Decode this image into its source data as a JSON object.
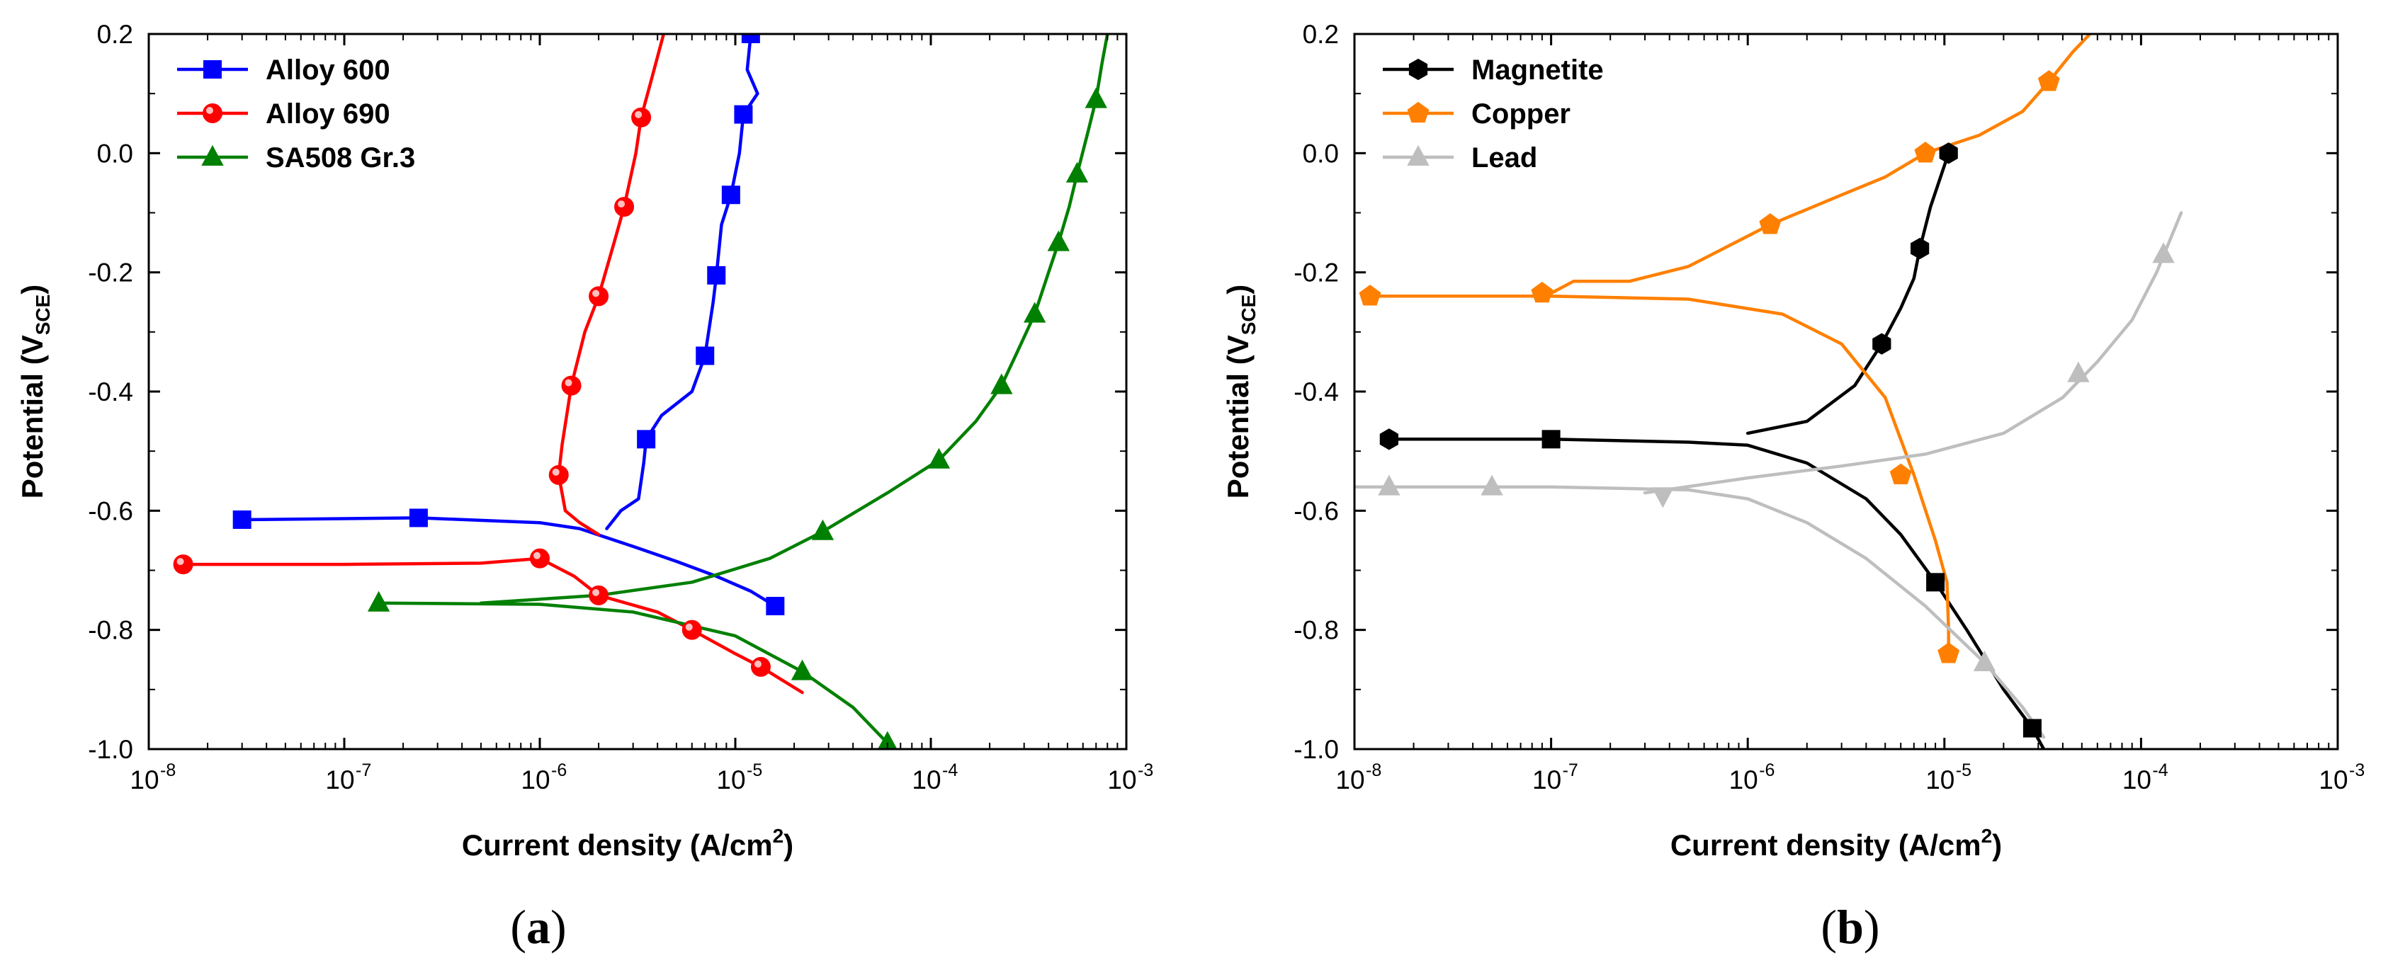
{
  "chart_data": [
    {
      "type": "line",
      "panel_label": "a",
      "xlabel": "Current density (A/cm",
      "xlabel_sup": "2",
      "xlabel_end": ")",
      "ylabel": "Potential (V",
      "ylabel_sub": "SCE",
      "ylabel_end": ")",
      "xscale": "log",
      "xlim": [
        1e-08,
        0.001
      ],
      "ylim": [
        -1.0,
        0.2
      ],
      "x_ticks": [
        -8,
        -7,
        -6,
        -5,
        -4,
        -3
      ],
      "y_ticks": [
        "0.2",
        "0.0",
        "-0.2",
        "-0.4",
        "-0.6",
        "-0.8",
        "-1.0"
      ],
      "legend_position": "top-left",
      "series": [
        {
          "name": "Alloy 600",
          "color": "#0000ff",
          "marker": "square",
          "cathodic": [
            [
              3e-08,
              -0.615
            ],
            [
              2.4e-07,
              -0.612
            ],
            [
              1e-06,
              -0.62
            ],
            [
              1.6e-06,
              -0.63
            ],
            [
              3e-06,
              -0.66
            ],
            [
              5e-06,
              -0.685
            ],
            [
              8e-06,
              -0.71
            ],
            [
              1.2e-05,
              -0.735
            ],
            [
              1.6e-05,
              -0.76
            ]
          ],
          "anodic": [
            [
              2.2e-06,
              -0.63
            ],
            [
              2.6e-06,
              -0.6
            ],
            [
              3.2e-06,
              -0.58
            ],
            [
              3.4e-06,
              -0.52
            ],
            [
              3.5e-06,
              -0.48
            ],
            [
              4.2e-06,
              -0.44
            ],
            [
              6e-06,
              -0.4
            ],
            [
              7e-06,
              -0.34
            ],
            [
              7.7e-06,
              -0.25
            ],
            [
              8e-06,
              -0.205
            ],
            [
              8.5e-06,
              -0.12
            ],
            [
              9.5e-06,
              -0.07
            ],
            [
              1.05e-05,
              0.0
            ],
            [
              1.1e-05,
              0.065
            ],
            [
              1.3e-05,
              0.1
            ],
            [
              1.15e-05,
              0.14
            ],
            [
              1.2e-05,
              0.2
            ]
          ],
          "marker_points": [
            [
              3e-08,
              -0.615
            ],
            [
              2.4e-07,
              -0.612
            ],
            [
              1.6e-05,
              -0.76
            ],
            [
              3.5e-06,
              -0.48
            ],
            [
              7e-06,
              -0.34
            ],
            [
              8e-06,
              -0.205
            ],
            [
              9.5e-06,
              -0.07
            ],
            [
              1.1e-05,
              0.065
            ],
            [
              1.2e-05,
              0.2
            ]
          ]
        },
        {
          "name": "Alloy 690",
          "color": "#ff0000",
          "marker": "circle",
          "cathodic": [
            [
              1.5e-08,
              -0.69
            ],
            [
              1e-07,
              -0.69
            ],
            [
              5e-07,
              -0.688
            ],
            [
              1e-06,
              -0.68
            ],
            [
              1.5e-06,
              -0.71
            ],
            [
              2e-06,
              -0.742
            ],
            [
              4e-06,
              -0.77
            ],
            [
              6e-06,
              -0.8
            ],
            [
              1e-05,
              -0.84
            ],
            [
              1.35e-05,
              -0.862
            ],
            [
              2.2e-05,
              -0.905
            ]
          ],
          "anodic": [
            [
              2e-06,
              -0.64
            ],
            [
              1.6e-06,
              -0.62
            ],
            [
              1.35e-06,
              -0.6
            ],
            [
              1.25e-06,
              -0.54
            ],
            [
              1.3e-06,
              -0.49
            ],
            [
              1.45e-06,
              -0.39
            ],
            [
              1.7e-06,
              -0.3
            ],
            [
              2e-06,
              -0.24
            ],
            [
              2.4e-06,
              -0.15
            ],
            [
              2.7e-06,
              -0.09
            ],
            [
              3.1e-06,
              0.0
            ],
            [
              3.3e-06,
              0.06
            ],
            [
              3.7e-06,
              0.12
            ],
            [
              4.3e-06,
              0.2
            ]
          ],
          "marker_points": [
            [
              1.5e-08,
              -0.69
            ],
            [
              1e-06,
              -0.68
            ],
            [
              2e-06,
              -0.742
            ],
            [
              6e-06,
              -0.8
            ],
            [
              1.35e-05,
              -0.862
            ],
            [
              1.25e-06,
              -0.54
            ],
            [
              1.45e-06,
              -0.39
            ],
            [
              2e-06,
              -0.24
            ],
            [
              2.7e-06,
              -0.09
            ],
            [
              3.3e-06,
              0.06
            ]
          ]
        },
        {
          "name": "SA508 Gr.3",
          "color": "#008000",
          "marker": "triangle",
          "cathodic": [
            [
              1.5e-07,
              -0.755
            ],
            [
              1e-06,
              -0.757
            ],
            [
              3e-06,
              -0.77
            ],
            [
              1e-05,
              -0.81
            ],
            [
              2.2e-05,
              -0.87
            ],
            [
              4e-05,
              -0.93
            ],
            [
              6e-05,
              -0.99
            ]
          ],
          "anodic": [
            [
              5e-07,
              -0.755
            ],
            [
              2e-06,
              -0.742
            ],
            [
              6e-06,
              -0.72
            ],
            [
              1.5e-05,
              -0.68
            ],
            [
              2.8e-05,
              -0.635
            ],
            [
              6e-05,
              -0.57
            ],
            [
              0.00011,
              -0.515
            ],
            [
              0.00017,
              -0.45
            ],
            [
              0.00023,
              -0.39
            ],
            [
              0.00028,
              -0.33
            ],
            [
              0.00034,
              -0.27
            ],
            [
              0.0004,
              -0.2
            ],
            [
              0.00045,
              -0.15
            ],
            [
              0.00051,
              -0.09
            ],
            [
              0.00056,
              -0.035
            ],
            [
              0.00063,
              0.03
            ],
            [
              0.0007,
              0.09
            ],
            [
              0.00075,
              0.15
            ],
            [
              0.0008,
              0.2
            ]
          ],
          "marker_points": [
            [
              1.5e-07,
              -0.755
            ],
            [
              2.2e-05,
              -0.87
            ],
            [
              6e-05,
              -0.99
            ],
            [
              2.8e-05,
              -0.635
            ],
            [
              0.00011,
              -0.515
            ],
            [
              0.00023,
              -0.39
            ],
            [
              0.00034,
              -0.27
            ],
            [
              0.00045,
              -0.15
            ],
            [
              0.00056,
              -0.035
            ],
            [
              0.0007,
              0.09
            ]
          ]
        }
      ]
    },
    {
      "type": "line",
      "panel_label": "b",
      "xlabel": "Current density (A/cm",
      "xlabel_sup": "2",
      "xlabel_end": ")",
      "ylabel": "Potential (V",
      "ylabel_sub": "SCE",
      "ylabel_end": ")",
      "xscale": "log",
      "xlim": [
        1e-08,
        0.001
      ],
      "ylim": [
        -1.0,
        0.2
      ],
      "x_ticks": [
        -8,
        -7,
        -6,
        -5,
        -4,
        -3
      ],
      "y_ticks": [
        "0.2",
        "0.0",
        "-0.2",
        "-0.4",
        "-0.6",
        "-0.8",
        "-1.0"
      ],
      "legend_position": "top-left",
      "series": [
        {
          "name": "Magnetite",
          "color": "#000000",
          "marker": "hexagon",
          "cathodic": [
            [
              1.5e-08,
              -0.48
            ],
            [
              1e-07,
              -0.48
            ],
            [
              5e-07,
              -0.485
            ],
            [
              1e-06,
              -0.49
            ],
            [
              2e-06,
              -0.52
            ],
            [
              4e-06,
              -0.58
            ],
            [
              6e-06,
              -0.64
            ],
            [
              9e-06,
              -0.72
            ],
            [
              1.3e-05,
              -0.8
            ],
            [
              2e-05,
              -0.9
            ],
            [
              2.8e-05,
              -0.965
            ],
            [
              3.2e-05,
              -1.0
            ]
          ],
          "anodic": [
            [
              1e-06,
              -0.47
            ],
            [
              2e-06,
              -0.45
            ],
            [
              3.5e-06,
              -0.39
            ],
            [
              4.8e-06,
              -0.32
            ],
            [
              6e-06,
              -0.26
            ],
            [
              7e-06,
              -0.21
            ],
            [
              7.5e-06,
              -0.16
            ],
            [
              8.5e-06,
              -0.09
            ],
            [
              1.05e-05,
              0.0
            ]
          ],
          "marker_points": [
            [
              1.5e-08,
              -0.48
            ],
            [
              4.8e-06,
              -0.32
            ],
            [
              7.5e-06,
              -0.16
            ],
            [
              1.05e-05,
              0.0
            ]
          ],
          "square_points": [
            [
              1e-07,
              -0.48
            ],
            [
              9e-06,
              -0.72
            ],
            [
              2.8e-05,
              -0.965
            ]
          ]
        },
        {
          "name": "Copper",
          "color": "#ff8000",
          "marker": "pentagon",
          "cathodic": [
            [
              1.2e-08,
              -0.24
            ],
            [
              1e-07,
              -0.24
            ],
            [
              5e-07,
              -0.245
            ],
            [
              1.5e-06,
              -0.27
            ],
            [
              3e-06,
              -0.32
            ],
            [
              5e-06,
              -0.41
            ],
            [
              7e-06,
              -0.54
            ],
            [
              9e-06,
              -0.65
            ],
            [
              1.03e-05,
              -0.72
            ],
            [
              1.05e-05,
              -0.8
            ],
            [
              1.05e-05,
              -0.84
            ]
          ],
          "anodic": [
            [
              1e-07,
              -0.235
            ],
            [
              1.3e-07,
              -0.215
            ],
            [
              2.5e-07,
              -0.215
            ],
            [
              5e-07,
              -0.19
            ],
            [
              1.3e-06,
              -0.12
            ],
            [
              3e-06,
              -0.07
            ],
            [
              5e-06,
              -0.04
            ],
            [
              8e-06,
              0.0
            ],
            [
              1.5e-05,
              0.03
            ],
            [
              2.5e-05,
              0.07
            ],
            [
              3.4e-05,
              0.12
            ],
            [
              4.5e-05,
              0.17
            ],
            [
              5.5e-05,
              0.2
            ]
          ],
          "marker_points": [
            [
              1.2e-08,
              -0.24
            ],
            [
              9e-08,
              -0.235
            ],
            [
              1.3e-06,
              -0.12
            ],
            [
              8e-06,
              0.0
            ],
            [
              3.4e-05,
              0.12
            ],
            [
              6e-06,
              -0.54
            ],
            [
              1.05e-05,
              -0.84
            ]
          ]
        },
        {
          "name": "Lead",
          "color": "#bebebe",
          "marker": "triangle",
          "cathodic": [
            [
              1e-08,
              -0.56
            ],
            [
              1e-07,
              -0.56
            ],
            [
              5e-07,
              -0.565
            ],
            [
              1e-06,
              -0.58
            ],
            [
              2e-06,
              -0.62
            ],
            [
              4e-06,
              -0.68
            ],
            [
              8e-06,
              -0.76
            ],
            [
              1.6e-05,
              -0.855
            ],
            [
              2.5e-05,
              -0.93
            ],
            [
              3.2e-05,
              -0.98
            ]
          ],
          "anodic": [
            [
              3e-07,
              -0.57
            ],
            [
              1e-06,
              -0.545
            ],
            [
              3e-06,
              -0.525
            ],
            [
              8e-06,
              -0.505
            ],
            [
              2e-05,
              -0.47
            ],
            [
              4e-05,
              -0.41
            ],
            [
              6e-05,
              -0.35
            ],
            [
              9e-05,
              -0.28
            ],
            [
              0.00012,
              -0.2
            ],
            [
              0.00016,
              -0.1
            ]
          ],
          "marker_points": [
            [
              1.5e-08,
              -0.56
            ],
            [
              5e-08,
              -0.56
            ],
            [
              1.6e-05,
              -0.855
            ],
            [
              4.8e-05,
              -0.37
            ],
            [
              0.00013,
              -0.17
            ]
          ],
          "inverted_points": [
            [
              3.7e-07,
              -0.575
            ]
          ]
        }
      ]
    }
  ]
}
